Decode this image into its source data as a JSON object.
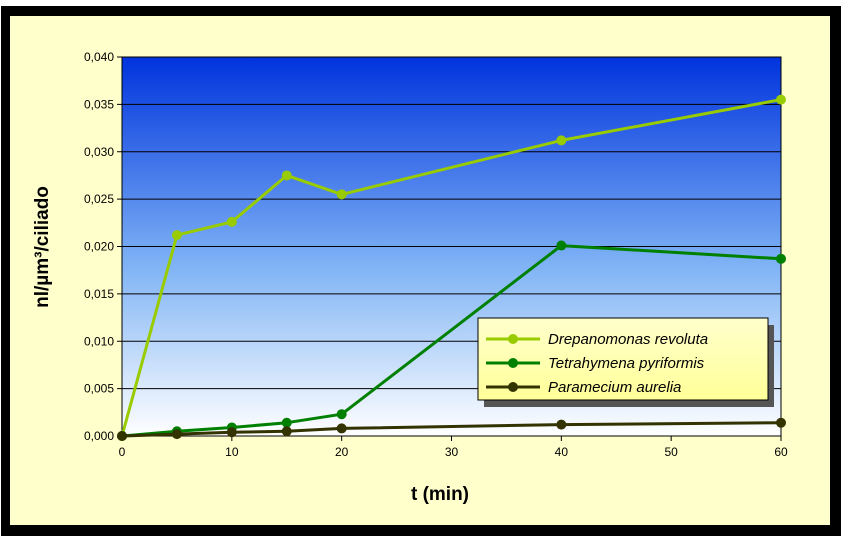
{
  "chart_data": {
    "type": "line",
    "title": "",
    "xlabel": "t (min)",
    "ylabel": "nl/µm³/ciliado",
    "xlim": [
      0,
      60
    ],
    "ylim": [
      0,
      0.04
    ],
    "x_ticks": [
      "0",
      "10",
      "20",
      "30",
      "40",
      "50",
      "60"
    ],
    "x_tick_values": [
      0,
      10,
      20,
      30,
      40,
      50,
      60
    ],
    "y_ticks": [
      "0,000",
      "0,005",
      "0,010",
      "0,015",
      "0,020",
      "0,025",
      "0,030",
      "0,035",
      "0,040"
    ],
    "y_tick_values": [
      0,
      0.005,
      0.01,
      0.015,
      0.02,
      0.025,
      0.03,
      0.035,
      0.04
    ],
    "grid": true,
    "legend_position": "lower-right",
    "series": [
      {
        "name": "Drepanomonas revoluta",
        "color": "#99cc00",
        "x": [
          0,
          5,
          10,
          15,
          20,
          40,
          60
        ],
        "y": [
          0,
          0.0212,
          0.0226,
          0.0275,
          0.0255,
          0.0312,
          0.0355
        ]
      },
      {
        "name": "Tetrahymena pyriformis",
        "color": "#008000",
        "x": [
          0,
          5,
          10,
          15,
          20,
          40,
          60
        ],
        "y": [
          0,
          0.0005,
          0.0009,
          0.0014,
          0.0023,
          0.0201,
          0.0187
        ]
      },
      {
        "name": "Paramecium aurelia",
        "color": "#333300",
        "x": [
          0,
          5,
          10,
          15,
          20,
          40,
          60
        ],
        "y": [
          0,
          0.0002,
          0.0004,
          0.0005,
          0.0008,
          0.0012,
          0.0014
        ]
      }
    ]
  }
}
